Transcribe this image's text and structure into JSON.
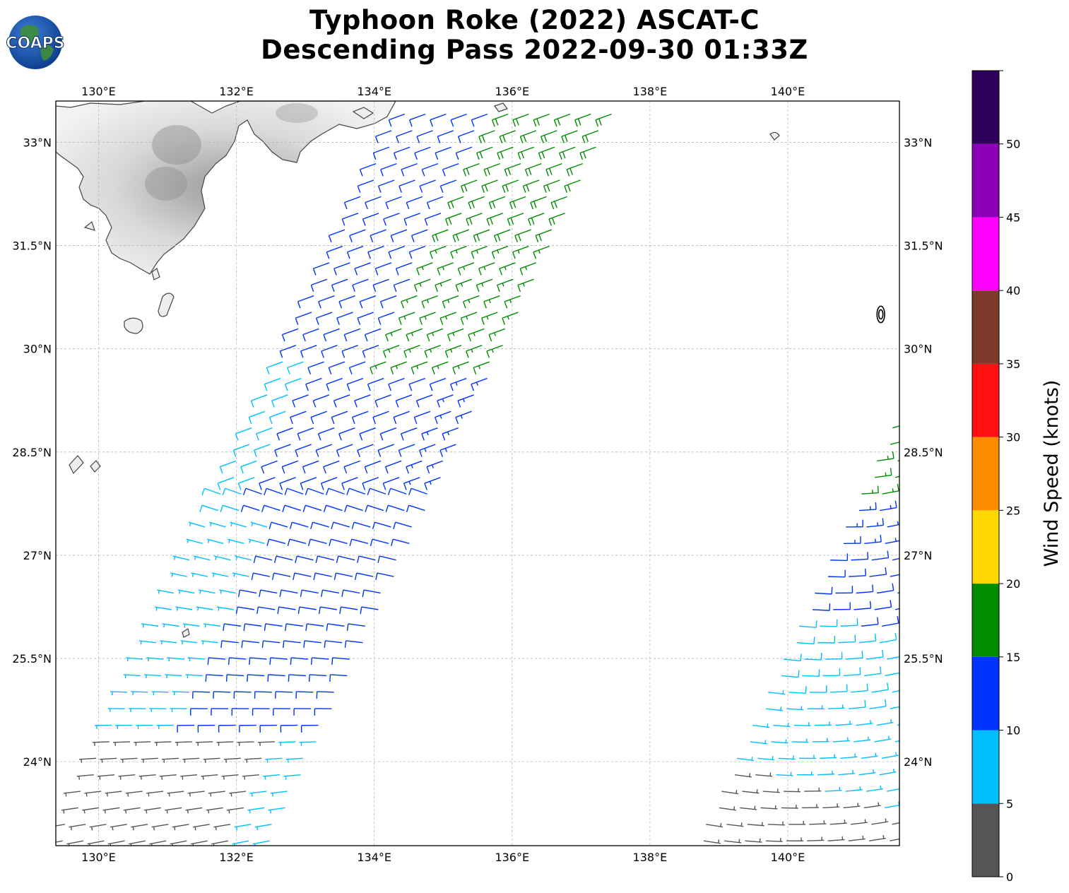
{
  "header": {
    "title_line1": "Typhoon Roke (2022) ASCAT-C",
    "title_line2": "Descending Pass 2022-09-30 01:33Z",
    "logo_text": "COAPS"
  },
  "map": {
    "lon_range": [
      129.38,
      141.62
    ],
    "lat_range": [
      22.78,
      33.6
    ],
    "lon_ticks": [
      {
        "value": 130,
        "label": "130°E"
      },
      {
        "value": 132,
        "label": "132°E"
      },
      {
        "value": 134,
        "label": "134°E"
      },
      {
        "value": 136,
        "label": "136°E"
      },
      {
        "value": 138,
        "label": "138°E"
      },
      {
        "value": 140,
        "label": "140°E"
      }
    ],
    "lat_ticks": [
      {
        "value": 33,
        "label": "33°N"
      },
      {
        "value": 31.5,
        "label": "31.5°N"
      },
      {
        "value": 30,
        "label": "30°N"
      },
      {
        "value": 28.5,
        "label": "28.5°N"
      },
      {
        "value": 27,
        "label": "27°N"
      },
      {
        "value": 25.5,
        "label": "25.5°N"
      },
      {
        "value": 24,
        "label": "24°N"
      }
    ],
    "grid": true,
    "swaths": [
      {
        "name": "west",
        "lon_bottom_left": 129.4,
        "lat_bottom": 22.85,
        "lat_top": 33.55,
        "width_lon": 3.05,
        "drift_lon_per_lat": 0.47
      },
      {
        "name": "east",
        "lon_bottom_left": 138.7,
        "lat_bottom": 22.85,
        "lat_top": 33.55,
        "width_lon": 3.05,
        "drift_lon_per_lat": 0.47
      }
    ],
    "storm_center": {
      "lon": 141.35,
      "lat": 30.5
    }
  },
  "colorbar": {
    "label": "Wind Speed (knots)",
    "bounds": [
      0,
      5,
      10,
      15,
      20,
      25,
      30,
      35,
      40,
      45,
      50,
      55
    ],
    "tick_labels": [
      "0",
      "5",
      "10",
      "15",
      "20",
      "25",
      "30",
      "35",
      "40",
      "45",
      "50"
    ],
    "colors": [
      "#555555",
      "#00bfff",
      "#0033ff",
      "#008c00",
      "#ffd700",
      "#ff8c00",
      "#ff1010",
      "#7b3a2a",
      "#ff00ff",
      "#8b00b8",
      "#2e005a"
    ]
  }
}
